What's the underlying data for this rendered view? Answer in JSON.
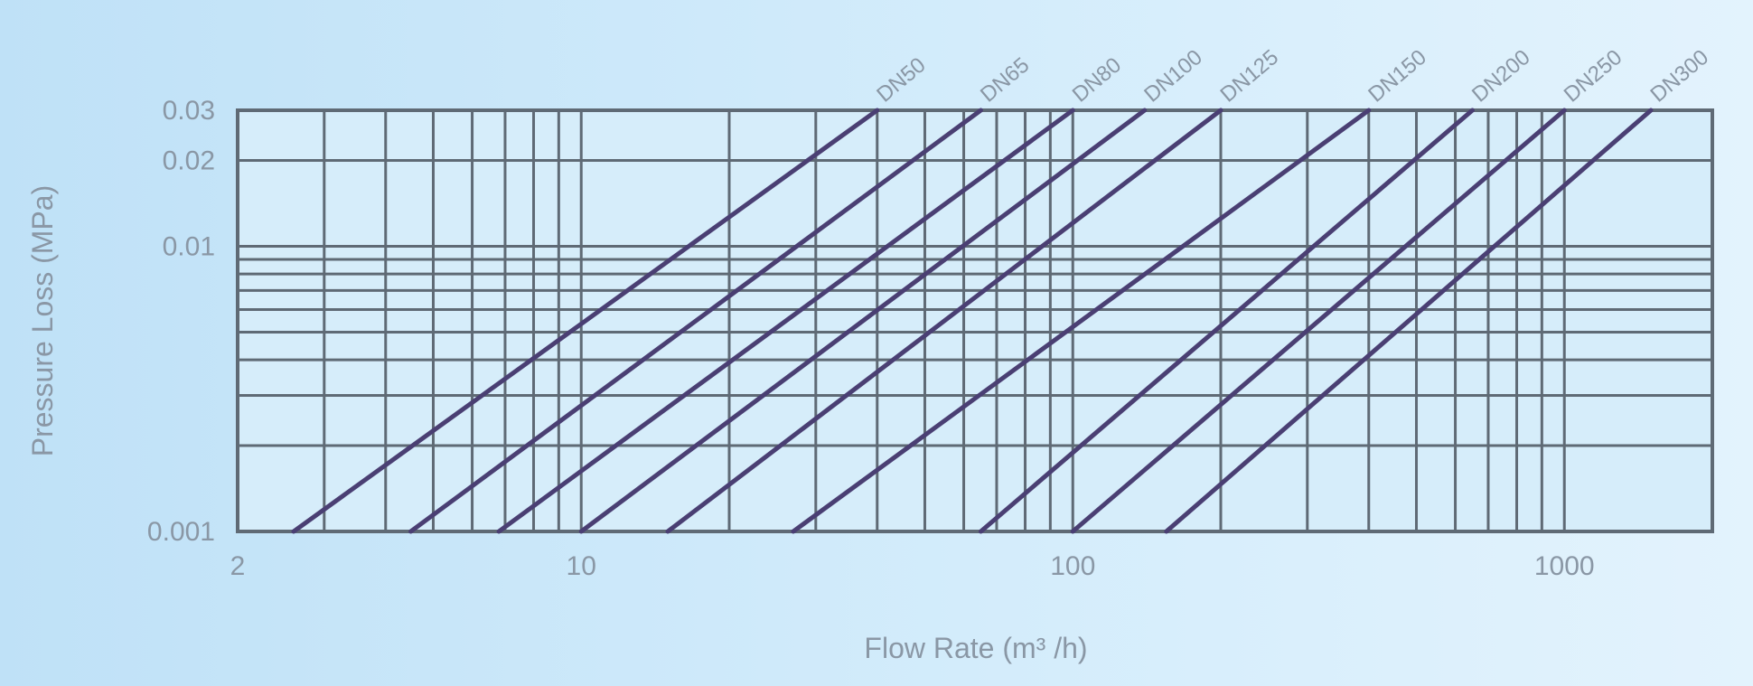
{
  "chart_data": {
    "type": "line",
    "title": "",
    "xlabel": "Flow Rate (m³ /h)",
    "ylabel": "Pressure Loss (MPa)",
    "x_scale": "log",
    "y_scale": "log",
    "xlim": [
      2,
      2000
    ],
    "ylim": [
      0.001,
      0.03
    ],
    "x_ticks": [
      {
        "value": 2,
        "label": "2"
      },
      {
        "value": 10,
        "label": "10"
      },
      {
        "value": 100,
        "label": "100"
      },
      {
        "value": 1000,
        "label": "1000"
      }
    ],
    "y_ticks": [
      {
        "value": 0.001,
        "label": "0.001"
      },
      {
        "value": 0.01,
        "label": "0.01"
      },
      {
        "value": 0.02,
        "label": "0.02"
      },
      {
        "value": 0.03,
        "label": "0.03"
      }
    ],
    "grid": true,
    "series_color": "#4a3f73",
    "grid_color": "#5f6a75",
    "series": [
      {
        "name": "DN50",
        "x": [
          2.6,
          40
        ],
        "y": [
          0.001,
          0.03
        ]
      },
      {
        "name": "DN65",
        "x": [
          4.5,
          65
        ],
        "y": [
          0.001,
          0.03
        ]
      },
      {
        "name": "DN80",
        "x": [
          6.8,
          100
        ],
        "y": [
          0.001,
          0.03
        ]
      },
      {
        "name": "DN100",
        "x": [
          10,
          140
        ],
        "y": [
          0.001,
          0.03
        ]
      },
      {
        "name": "DN125",
        "x": [
          15,
          200
        ],
        "y": [
          0.001,
          0.03
        ]
      },
      {
        "name": "DN150",
        "x": [
          27,
          400
        ],
        "y": [
          0.001,
          0.03
        ]
      },
      {
        "name": "DN200",
        "x": [
          65,
          650
        ],
        "y": [
          0.001,
          0.03
        ]
      },
      {
        "name": "DN250",
        "x": [
          100,
          1000
        ],
        "y": [
          0.001,
          0.03
        ]
      },
      {
        "name": "DN300",
        "x": [
          155,
          1500
        ],
        "y": [
          0.001,
          0.03
        ]
      }
    ]
  }
}
